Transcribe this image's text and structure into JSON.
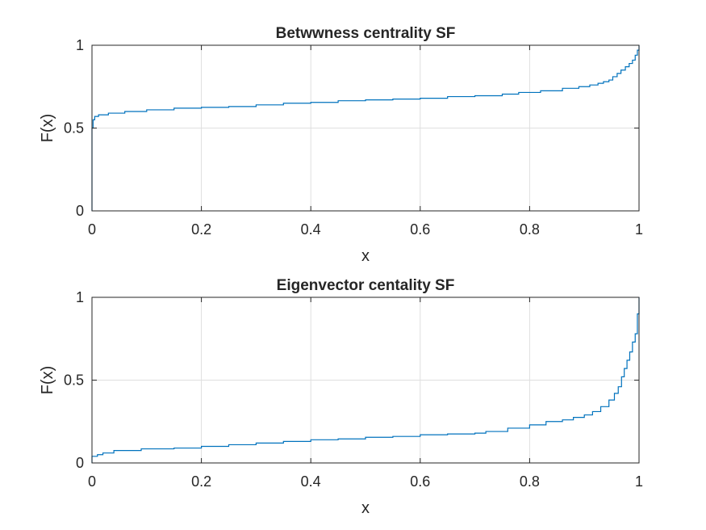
{
  "colors": {
    "series": "#0072BD"
  },
  "chart_data": [
    {
      "type": "line",
      "style": "stairs",
      "title": "Betwwness centrality SF",
      "xlabel": "x",
      "ylabel": "F(x)",
      "xlim": [
        0,
        1
      ],
      "ylim": [
        0,
        1
      ],
      "xticks": [
        0,
        0.2,
        0.4,
        0.6,
        0.8,
        1
      ],
      "yticks": [
        0,
        0.5,
        1
      ],
      "xtick_labels": [
        "0",
        "0.2",
        "0.4",
        "0.6",
        "0.8",
        "1"
      ],
      "ytick_labels": [
        "0",
        "0.5",
        "1"
      ],
      "grid": true,
      "series": [
        {
          "x": [
            0,
            0,
            0.002,
            0.005,
            0.012,
            0.03,
            0.06,
            0.1,
            0.15,
            0.2,
            0.25,
            0.3,
            0.35,
            0.4,
            0.45,
            0.5,
            0.55,
            0.6,
            0.65,
            0.7,
            0.75,
            0.78,
            0.82,
            0.86,
            0.89,
            0.91,
            0.925,
            0.935,
            0.945,
            0.952,
            0.96,
            0.967,
            0.975,
            0.982,
            0.988,
            0.993,
            0.997,
            1
          ],
          "y": [
            0,
            0.5,
            0.55,
            0.57,
            0.58,
            0.59,
            0.6,
            0.61,
            0.62,
            0.625,
            0.63,
            0.64,
            0.65,
            0.655,
            0.665,
            0.67,
            0.675,
            0.68,
            0.69,
            0.695,
            0.705,
            0.715,
            0.725,
            0.74,
            0.75,
            0.76,
            0.77,
            0.78,
            0.79,
            0.81,
            0.83,
            0.85,
            0.87,
            0.89,
            0.91,
            0.94,
            0.97,
            1
          ]
        }
      ]
    },
    {
      "type": "line",
      "style": "stairs",
      "title": "Eigenvector centality SF",
      "xlabel": "x",
      "ylabel": "F(x)",
      "xlim": [
        0,
        1
      ],
      "ylim": [
        0,
        1
      ],
      "xticks": [
        0,
        0.2,
        0.4,
        0.6,
        0.8,
        1
      ],
      "yticks": [
        0,
        0.5,
        1
      ],
      "xtick_labels": [
        "0",
        "0.2",
        "0.4",
        "0.6",
        "0.8",
        "1"
      ],
      "ytick_labels": [
        "0",
        "0.5",
        "1"
      ],
      "grid": true,
      "series": [
        {
          "x": [
            0,
            0,
            0.01,
            0.02,
            0.04,
            0.09,
            0.15,
            0.2,
            0.25,
            0.3,
            0.35,
            0.4,
            0.45,
            0.5,
            0.55,
            0.6,
            0.65,
            0.7,
            0.72,
            0.76,
            0.8,
            0.83,
            0.86,
            0.88,
            0.9,
            0.915,
            0.93,
            0.945,
            0.955,
            0.962,
            0.968,
            0.973,
            0.978,
            0.983,
            0.988,
            0.993,
            0.997,
            1
          ],
          "y": [
            0,
            0.04,
            0.05,
            0.06,
            0.075,
            0.085,
            0.09,
            0.1,
            0.11,
            0.12,
            0.13,
            0.14,
            0.145,
            0.155,
            0.16,
            0.17,
            0.175,
            0.18,
            0.19,
            0.21,
            0.23,
            0.25,
            0.26,
            0.275,
            0.29,
            0.31,
            0.34,
            0.38,
            0.42,
            0.46,
            0.52,
            0.57,
            0.62,
            0.67,
            0.73,
            0.78,
            0.9,
            1
          ]
        }
      ]
    }
  ]
}
